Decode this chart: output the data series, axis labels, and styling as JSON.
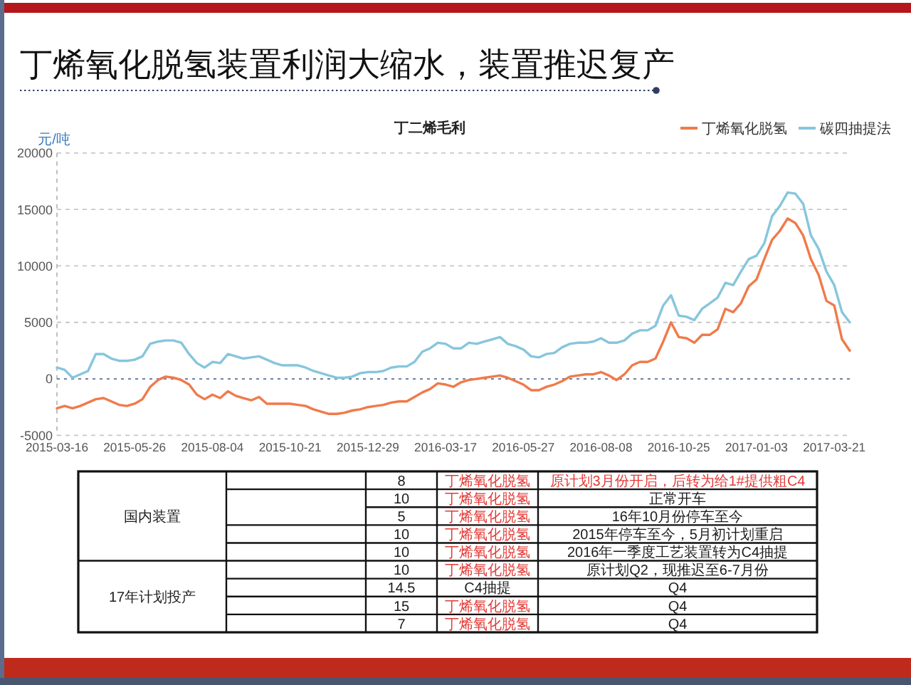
{
  "chart_data": [
    {
      "type": "line",
      "title": "丁烯氧化脱氢装置利润大缩水，装置推迟复产",
      "subtitle": "丁二烯毛利",
      "ylabel": "元/吨",
      "categories": [
        "2015-03-16",
        null,
        null,
        null,
        null,
        null,
        null,
        null,
        null,
        null,
        "2015-05-26",
        null,
        null,
        null,
        null,
        null,
        null,
        null,
        null,
        null,
        "2015-08-04",
        null,
        null,
        null,
        null,
        null,
        null,
        null,
        null,
        null,
        "2015-10-21",
        null,
        null,
        null,
        null,
        null,
        null,
        null,
        null,
        null,
        "2015-12-29",
        null,
        null,
        null,
        null,
        null,
        null,
        null,
        null,
        null,
        "2016-03-17",
        null,
        null,
        null,
        null,
        null,
        null,
        null,
        null,
        null,
        "2016-05-27",
        null,
        null,
        null,
        null,
        null,
        null,
        null,
        null,
        null,
        "2016-08-08",
        null,
        null,
        null,
        null,
        null,
        null,
        null,
        null,
        null,
        "2016-10-25",
        null,
        null,
        null,
        null,
        null,
        null,
        null,
        null,
        null,
        "2017-01-03",
        null,
        null,
        null,
        null,
        null,
        null,
        null,
        null,
        null,
        "2017-03-21",
        null,
        null
      ],
      "series": [
        {
          "name": "丁烯氧化脱氢",
          "color": "#f07a4a",
          "values": [
            -2600,
            -2400,
            -2600,
            -2400,
            -2100,
            -1800,
            -1700,
            -2000,
            -2300,
            -2400,
            -2200,
            -1800,
            -700,
            -100,
            200,
            100,
            -100,
            -500,
            -1400,
            -1800,
            -1400,
            -1700,
            -1100,
            -1500,
            -1700,
            -1900,
            -1600,
            -2200,
            -2200,
            -2200,
            -2200,
            -2300,
            -2400,
            -2700,
            -2900,
            -3100,
            -3100,
            -3000,
            -2800,
            -2700,
            -2500,
            -2400,
            -2300,
            -2100,
            -2000,
            -2000,
            -1600,
            -1200,
            -900,
            -400,
            -500,
            -700,
            -300,
            -100,
            0,
            100,
            200,
            300,
            100,
            -200,
            -500,
            -1000,
            -1000,
            -700,
            -500,
            -200,
            200,
            300,
            400,
            400,
            600,
            300,
            -100,
            400,
            1200,
            1500,
            1500,
            1800,
            3300,
            5000,
            3700,
            3600,
            3200,
            3900,
            3900,
            4400,
            6200,
            5900,
            6700,
            8200,
            8800,
            10600,
            12300,
            13100,
            14200,
            13800,
            12700,
            10600,
            9200,
            6900,
            6500,
            3500,
            2500
          ]
        },
        {
          "name": "碳四抽提法",
          "color": "#86c6dc",
          "values": [
            1000,
            800,
            100,
            400,
            700,
            2200,
            2200,
            1800,
            1600,
            1600,
            1700,
            2000,
            3100,
            3300,
            3400,
            3400,
            3200,
            2200,
            1400,
            1000,
            1500,
            1400,
            2200,
            2000,
            1800,
            1900,
            2000,
            1700,
            1400,
            1200,
            1200,
            1200,
            1000,
            700,
            500,
            300,
            100,
            100,
            200,
            500,
            600,
            600,
            700,
            1000,
            1100,
            1100,
            1500,
            2400,
            2700,
            3200,
            3100,
            2700,
            2700,
            3200,
            3100,
            3300,
            3500,
            3700,
            3100,
            2900,
            2600,
            2000,
            1900,
            2200,
            2300,
            2800,
            3100,
            3200,
            3200,
            3300,
            3600,
            3200,
            3200,
            3400,
            4000,
            4300,
            4300,
            4700,
            6500,
            7400,
            5600,
            5500,
            5200,
            6200,
            6700,
            7200,
            8500,
            8300,
            9500,
            10600,
            10900,
            12000,
            14400,
            15300,
            16500,
            16400,
            15500,
            12700,
            11500,
            9500,
            8300,
            5900,
            5000
          ]
        }
      ],
      "ylim": [
        -5000,
        20000
      ],
      "yticks": [
        -5000,
        0,
        5000,
        10000,
        15000,
        20000
      ],
      "grid": "y",
      "legend": "top right",
      "ref_lines": [
        {
          "axis": "y",
          "value": 0,
          "color": "#7a88a6",
          "line_style": "dotted"
        }
      ]
    },
    {
      "type": "other",
      "annotations": [
        "国内装置",
        "8",
        "丁烯氧化脱氢",
        "原计划3月份开启，后转为给1#提供粗C4",
        "10",
        "丁烯氧化脱氢",
        "正常开车",
        "5",
        "丁烯氧化脱氢",
        "16年10月份停车至今",
        "10",
        "丁烯氧化脱氢",
        "2015年停车至今，5月初计划重启",
        "10",
        "丁烯氧化脱氢",
        "2016年一季度工艺装置转为C4抽提",
        "17年计划投产",
        "10",
        "丁烯氧化脱氢",
        "原计划Q2，现推迟至6-7月份",
        "14.5",
        "C4抽提",
        "Q4",
        "15",
        "丁烯氧化脱氢",
        "Q4",
        "7",
        "丁烯氧化脱氢",
        "Q4"
      ]
    }
  ]
}
